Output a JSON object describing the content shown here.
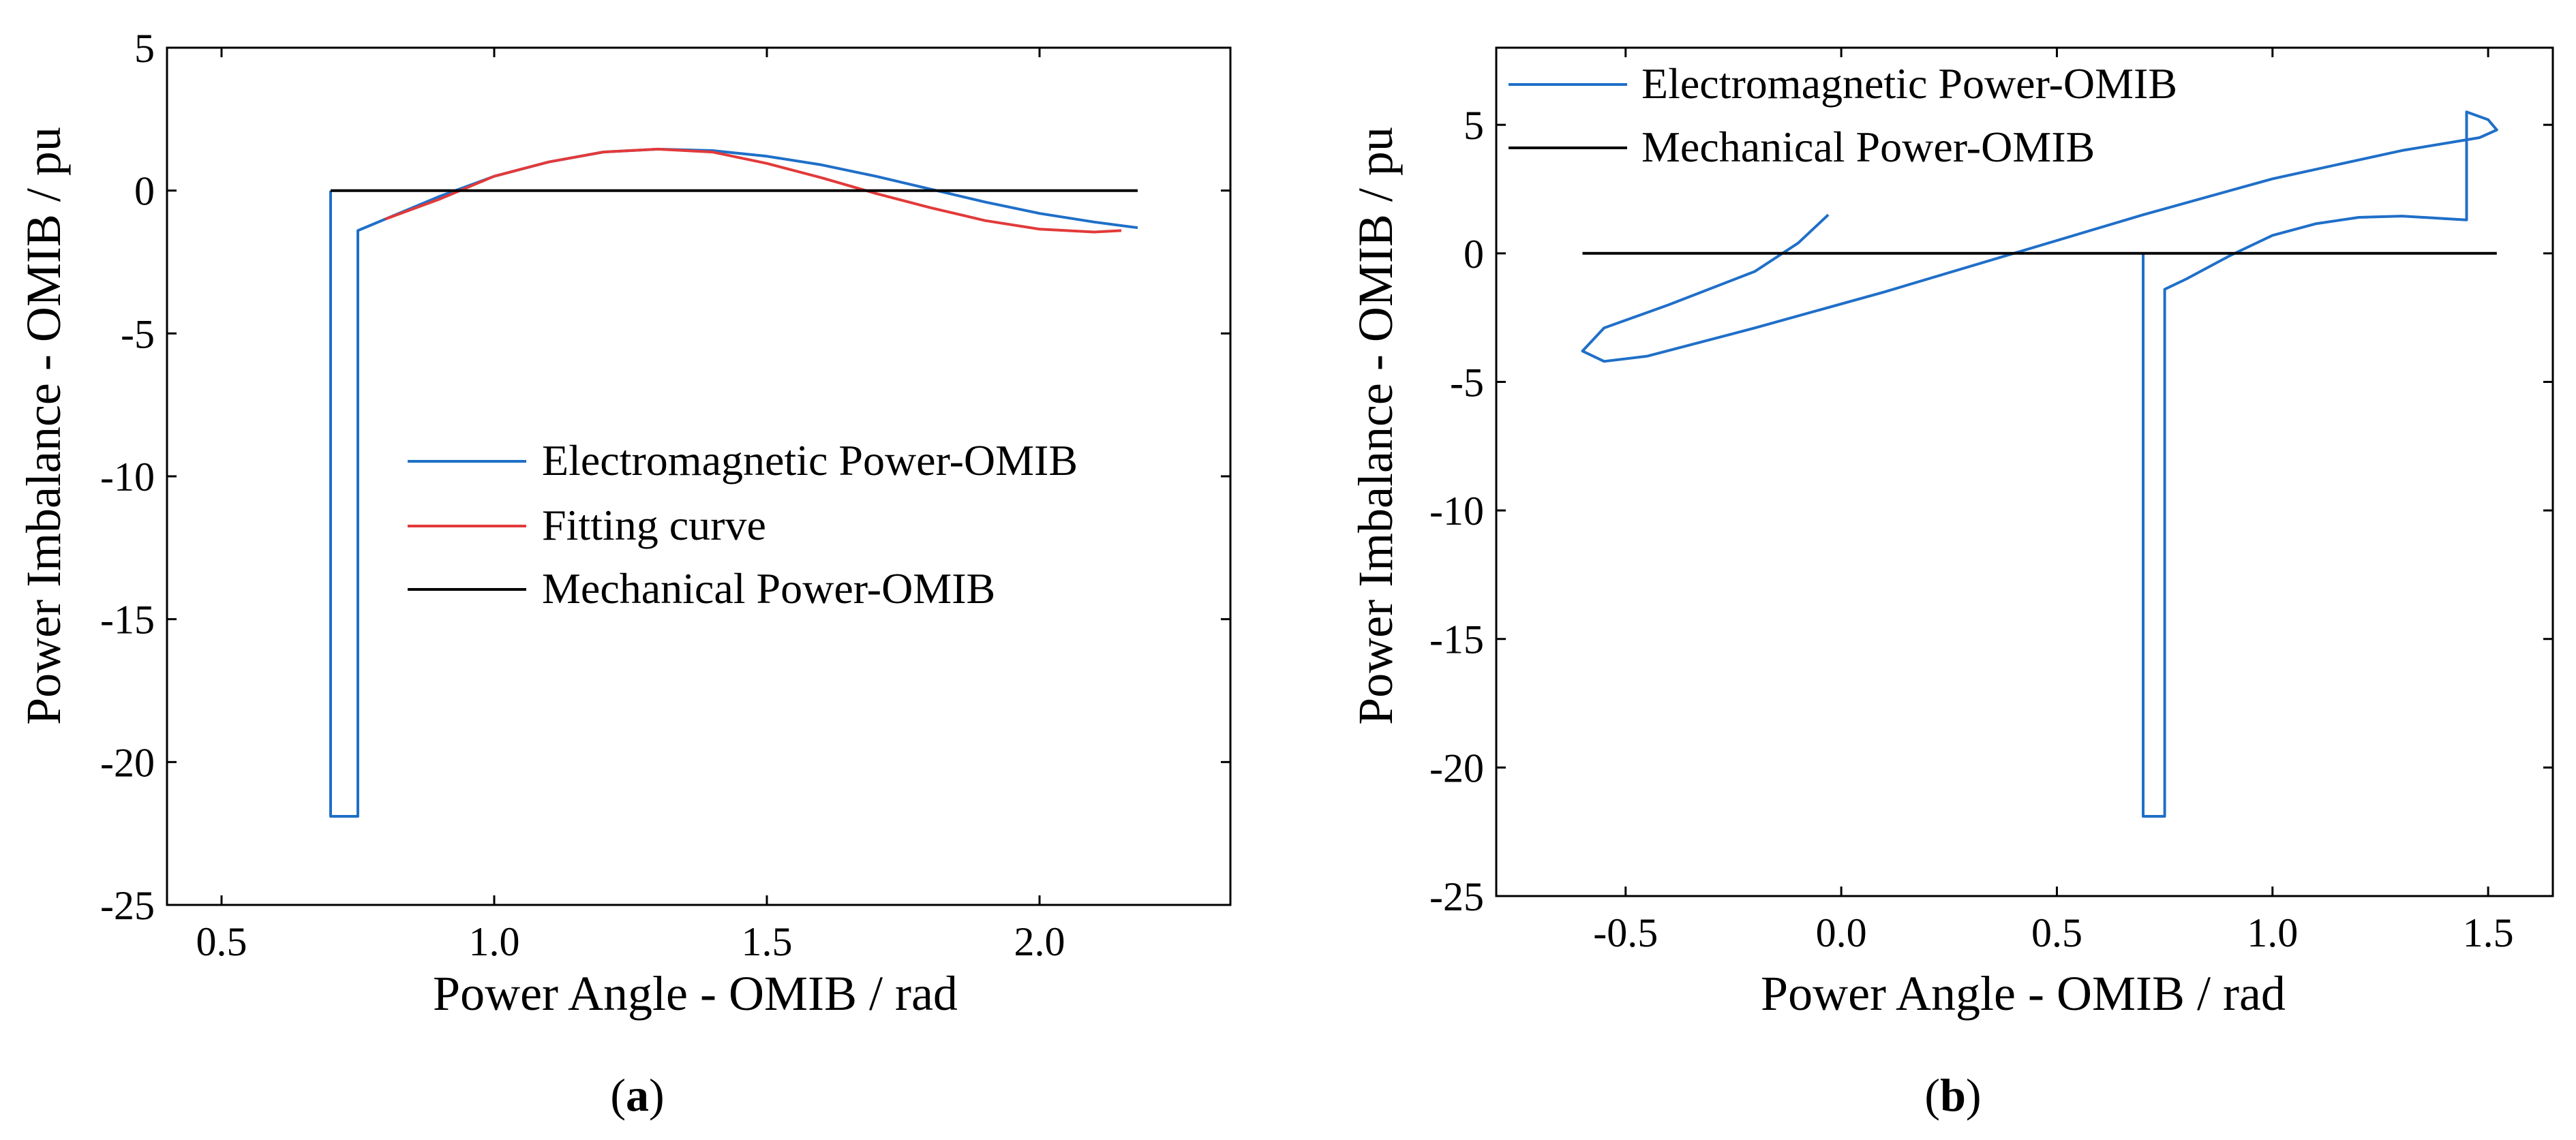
{
  "colors": {
    "em": "#1f6fc8",
    "fit": "#e23a3a",
    "mech": "#000000"
  },
  "chart_data": [
    {
      "type": "line",
      "panel_label": {
        "open": "(",
        "letter": "a",
        "close": ")"
      },
      "xlabel": "Power Angle - OMIB / rad",
      "ylabel": "Power Imbalance - OMIB / pu",
      "xlim": [
        0.4,
        2.35
      ],
      "ylim": [
        -25,
        5
      ],
      "xticks": [
        0.5,
        1.0,
        1.5,
        2.0
      ],
      "xtick_labels": [
        "0.5",
        "1.0",
        "1.5",
        "2.0"
      ],
      "yticks": [
        5,
        0,
        -5,
        -10,
        -15,
        -20,
        -25
      ],
      "ytick_labels": [
        "5",
        "0",
        "-5",
        "-10",
        "-15",
        "-20",
        "-25"
      ],
      "grid": false,
      "legend_position": "center-right",
      "series": [
        {
          "name": "Electromagnetic Power-OMIB",
          "color_key": "em",
          "x": [
            0.7,
            0.7,
            0.7,
            0.75,
            0.75,
            0.8,
            0.9,
            1.0,
            1.1,
            1.2,
            1.3,
            1.4,
            1.5,
            1.6,
            1.7,
            1.8,
            1.9,
            2.0,
            2.1,
            2.18
          ],
          "y": [
            0.0,
            -21.9,
            -21.9,
            -21.9,
            -1.4,
            -1.0,
            -0.2,
            0.5,
            1.0,
            1.35,
            1.45,
            1.4,
            1.2,
            0.9,
            0.5,
            0.05,
            -0.4,
            -0.8,
            -1.1,
            -1.3
          ]
        },
        {
          "name": "Fitting curve",
          "color_key": "fit",
          "x": [
            0.8,
            0.9,
            1.0,
            1.1,
            1.2,
            1.3,
            1.4,
            1.5,
            1.6,
            1.7,
            1.8,
            1.9,
            2.0,
            2.1,
            2.15
          ],
          "y": [
            -1.0,
            -0.3,
            0.5,
            1.0,
            1.35,
            1.45,
            1.35,
            0.95,
            0.45,
            -0.1,
            -0.6,
            -1.05,
            -1.35,
            -1.45,
            -1.4
          ]
        },
        {
          "name": "Mechanical Power-OMIB",
          "color_key": "mech",
          "x": [
            0.7,
            2.18
          ],
          "y": [
            0.0,
            0.0
          ]
        }
      ]
    },
    {
      "type": "line",
      "panel_label": {
        "open": "(",
        "letter": "b",
        "close": ")"
      },
      "xlabel": "Power Angle - OMIB / rad",
      "ylabel": "Power Imbalance - OMIB / pu",
      "xlim": [
        -0.8,
        1.65
      ],
      "ylim": [
        -25,
        8
      ],
      "xticks": [
        -0.5,
        0.0,
        0.5,
        1.0,
        1.5
      ],
      "xtick_labels": [
        "-0.5",
        "0.0",
        "0.5",
        "1.0",
        "1.5"
      ],
      "yticks": [
        5,
        0,
        -5,
        -10,
        -15,
        -20,
        -25
      ],
      "ytick_labels": [
        "5",
        "0",
        "-5",
        "-10",
        "-15",
        "-20",
        "-25"
      ],
      "grid": false,
      "legend_position": "top-left",
      "series": [
        {
          "name": "Electromagnetic Power-OMIB",
          "color_key": "em",
          "x": [
            0.7,
            0.7,
            0.75,
            0.75,
            0.8,
            0.9,
            1.0,
            1.1,
            1.2,
            1.3,
            1.4,
            1.45,
            1.45,
            1.45,
            1.5,
            1.52,
            1.48,
            1.3,
            1.0,
            0.7,
            0.4,
            0.1,
            -0.2,
            -0.45,
            -0.55,
            -0.6,
            -0.55,
            -0.4,
            -0.2,
            -0.1,
            -0.03
          ],
          "y": [
            0.0,
            -21.9,
            -21.9,
            -1.4,
            -1.0,
            -0.1,
            0.7,
            1.15,
            1.4,
            1.45,
            1.35,
            1.3,
            5.5,
            5.5,
            5.2,
            4.8,
            4.5,
            4.0,
            2.9,
            1.5,
            0.0,
            -1.5,
            -2.9,
            -4.0,
            -4.2,
            -3.8,
            -2.9,
            -2.0,
            -0.7,
            0.4,
            1.5
          ]
        },
        {
          "name": "Mechanical Power-OMIB",
          "color_key": "mech",
          "x": [
            -0.6,
            1.52
          ],
          "y": [
            0.0,
            0.0
          ]
        }
      ]
    }
  ]
}
